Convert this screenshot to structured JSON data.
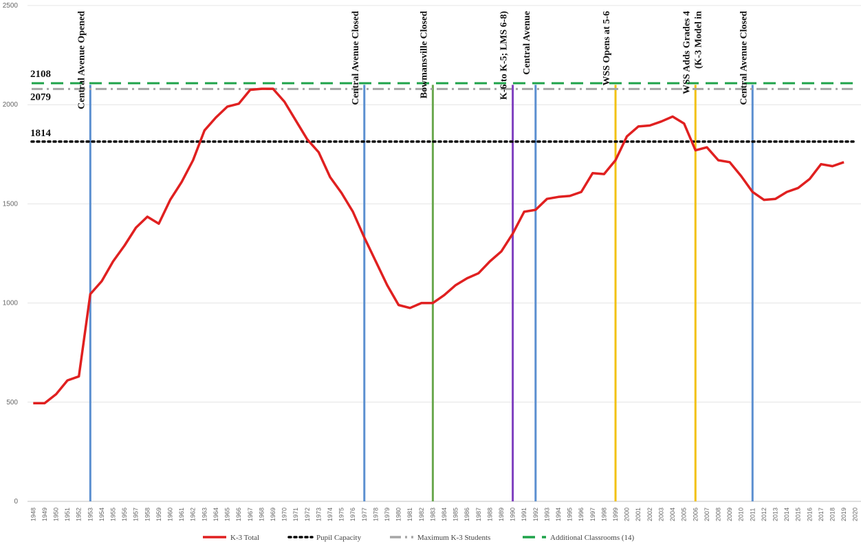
{
  "chart_data": {
    "type": "line",
    "title": "",
    "xlabel": "",
    "ylabel": "",
    "ylim": [
      0,
      2500
    ],
    "y_ticks": [
      0,
      500,
      1000,
      1500,
      2000,
      2500
    ],
    "grid": "horizontal",
    "legend_position": "bottom",
    "x": [
      1948,
      1949,
      1950,
      1951,
      1952,
      1953,
      1954,
      1955,
      1956,
      1957,
      1958,
      1959,
      1960,
      1961,
      1962,
      1963,
      1964,
      1965,
      1966,
      1967,
      1968,
      1969,
      1970,
      1971,
      1972,
      1973,
      1974,
      1975,
      1976,
      1977,
      1978,
      1979,
      1980,
      1981,
      1982,
      1983,
      1984,
      1985,
      1986,
      1987,
      1988,
      1989,
      1990,
      1991,
      1992,
      1993,
      1994,
      1995,
      1996,
      1997,
      1998,
      1999,
      2000,
      2001,
      2002,
      2003,
      2004,
      2005,
      2006,
      2007,
      2008,
      2009,
      2010,
      2011,
      2012,
      2013,
      2014,
      2015,
      2016,
      2017,
      2018,
      2019,
      2020
    ],
    "series": [
      {
        "name": "K-3 Total",
        "color": "#e02020",
        "style": "solid",
        "values": [
          495,
          495,
          540,
          610,
          630,
          1045,
          1110,
          1210,
          1290,
          1380,
          1435,
          1400,
          1520,
          1610,
          1720,
          1870,
          1935,
          1990,
          2005,
          2075,
          2080,
          2080,
          2015,
          1920,
          1825,
          1760,
          1635,
          1555,
          1460,
          1330,
          1210,
          1090,
          990,
          975,
          1000,
          1000,
          1040,
          1090,
          1125,
          1150,
          1210,
          1260,
          1350,
          1460,
          1470,
          1525,
          1535,
          1540,
          1560,
          1655,
          1650,
          1720,
          1840,
          1890,
          1895,
          1915,
          1940,
          1905,
          1770,
          1785,
          1720,
          1710,
          1640,
          1560,
          1520,
          1525,
          1560,
          1580,
          1625,
          1700,
          1690,
          1710,
          null
        ]
      },
      {
        "name": "Pupil Capacity",
        "color": "#000000",
        "style": "dotted",
        "constant": 1814
      },
      {
        "name": "Maximum K-3 Students",
        "color": "#a6a6a6",
        "style": "dashdot",
        "constant": 2079
      },
      {
        "name": "Additional Classrooms (14)",
        "color": "#1fa34a",
        "style": "dashed",
        "constant": 2108
      }
    ],
    "reference_labels": [
      "2108",
      "2079",
      "1814"
    ],
    "events": [
      {
        "year": 1953,
        "label": "Central Avenue Opened",
        "color": "#5b8fd0"
      },
      {
        "year": 1977,
        "label": "Central Avenue Closed",
        "color": "#5b8fd0"
      },
      {
        "year": 1983,
        "label": "Bowmansville Closed",
        "color": "#6aa84f"
      },
      {
        "year": 1990,
        "label": "K-6 to K-5; LMS 6-8)",
        "color": "#7f3fbf"
      },
      {
        "year": 1992,
        "label": "Central Avenue",
        "color": "#5b8fd0"
      },
      {
        "year": 1999,
        "label": "WSS Opens at 5-6",
        "color": "#f2c10e"
      },
      {
        "year": 2006,
        "label": "WSS Adds Grades 4",
        "label2": "(K-3 Model in",
        "color": "#f2c10e"
      },
      {
        "year": 2011,
        "label": "Central Avenue Closed",
        "color": "#5b8fd0"
      }
    ]
  }
}
